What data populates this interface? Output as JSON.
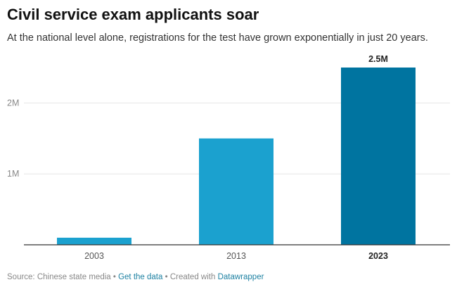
{
  "header": {
    "title": "Civil service exam applicants soar",
    "subtitle": "At the national level alone, registrations for the test have grown exponentially in just 20 years."
  },
  "footer": {
    "source": "Source: Chinese state media",
    "separator": " • ",
    "get_data": "Get the data",
    "created_with": "Created with",
    "datawrapper": "Datawrapper"
  },
  "chart_data": {
    "type": "bar",
    "title": "Civil service exam applicants soar",
    "subtitle": "At the national level alone, registrations for the test have grown exponentially in just 20 years.",
    "categories": [
      "2003",
      "2013",
      "2023"
    ],
    "values": [
      100000,
      1500000,
      2500000
    ],
    "highlight_category": "2023",
    "data_labels": [
      {
        "category": "2023",
        "text": "2.5M"
      }
    ],
    "yticks": [
      {
        "value": 1000000,
        "label": "1M"
      },
      {
        "value": 2000000,
        "label": "2M"
      }
    ],
    "ylim": [
      0,
      2500000
    ],
    "grid": true,
    "colors": {
      "bar": "#1ba1cf",
      "highlight": "#0074a0",
      "grid": "#e6e6e6",
      "axis": "#333333"
    }
  }
}
